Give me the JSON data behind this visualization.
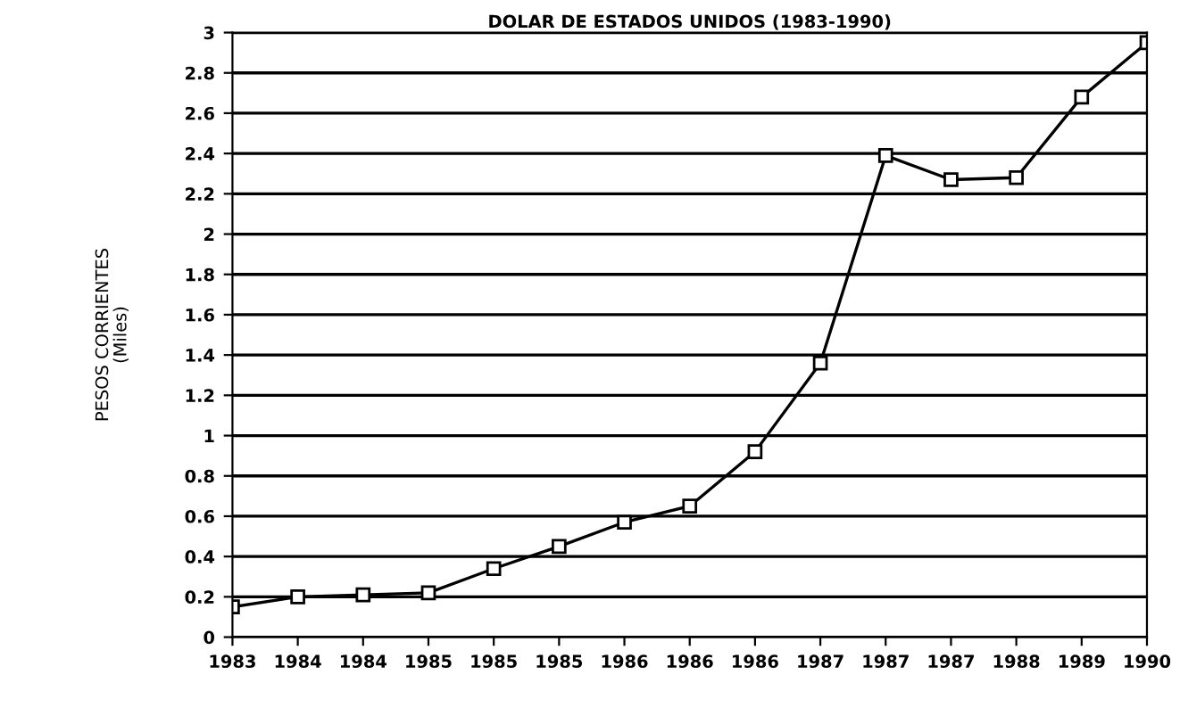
{
  "chart_data": {
    "type": "line",
    "title": "DOLAR DE ESTADOS UNIDOS (1983-1990)",
    "ylabel": "PESOS CORRIENTES\n(Miles)",
    "categories": [
      "1983",
      "1984",
      "1984",
      "1985",
      "1985",
      "1985",
      "1986",
      "1986",
      "1986",
      "1987",
      "1987",
      "1987",
      "1988",
      "1989",
      "1990"
    ],
    "series": [
      {
        "color": "#000000",
        "values": [
          0.15,
          0.2,
          0.21,
          0.22,
          0.34,
          0.45,
          0.57,
          0.65,
          0.92,
          1.36,
          2.39,
          2.27,
          2.28,
          2.68,
          2.95
        ]
      }
    ],
    "ylim": [
      0,
      3
    ],
    "yticks": [
      0,
      0.2,
      0.4,
      0.6,
      0.8,
      1,
      1.2,
      1.4,
      1.6,
      1.8,
      2,
      2.2,
      2.4,
      2.6,
      2.8,
      3
    ],
    "grid": "y",
    "marker": "square",
    "line_style": "solid",
    "legend": false
  }
}
